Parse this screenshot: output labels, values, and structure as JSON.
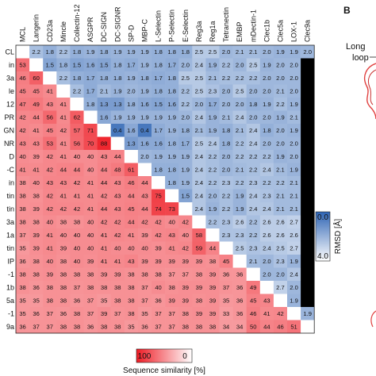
{
  "panel_label": "B",
  "panel_b_annotation": [
    "Long",
    "loop"
  ],
  "chart_data": {
    "type": "heatmap",
    "labels": [
      "MCL",
      "Langerin",
      "CD23a",
      "Mincle",
      "Collectin-12",
      "ASGPR",
      "DC-SIGN",
      "DC-SIGNR",
      "SP-D",
      "MBP-C",
      "L-Selectin",
      "P-Selectin",
      "E-Selectin",
      "Reg3a",
      "Reg1a",
      "Tetranectin",
      "EMBP",
      "mDectin-1",
      "Clec1b",
      "Clec5a",
      "LOX-1",
      "Clec9a"
    ],
    "row_labels_visible": [
      "CL",
      "in",
      "3a",
      "le",
      "12",
      "PR",
      "GN",
      "NR",
      "D",
      "-C",
      "in",
      "tin",
      "tin",
      "3a",
      "1a",
      "tin",
      "IP",
      "-1",
      "1b",
      "5a",
      "-1",
      "9a"
    ],
    "upper_triangle_metric": "RMSD [Å]",
    "lower_triangle_metric": "Sequence similarity [%]",
    "rmsd_colorbar": {
      "label": "RMSD [Å]",
      "min_label": "0.0",
      "max_label": "4.0",
      "range": [
        0,
        4
      ],
      "colors": [
        "#2e64b4",
        "#ffffff"
      ]
    },
    "similarity_colorbar": {
      "label": "Sequence similarity [%]",
      "min_label": "0",
      "max_label": "100",
      "range": [
        0,
        100
      ],
      "colors": [
        "#ffffff",
        "#ee1b24"
      ]
    },
    "upper_values": [
      [
        2.2,
        1.8,
        2.2,
        1.8,
        1.9,
        1.8,
        1.9,
        1.9,
        1.9,
        1.8,
        1.8,
        1.8,
        2.5,
        2.5,
        2.0,
        2.1,
        2.1,
        2.0,
        1.9,
        1.9,
        2.0
      ],
      [
        1.5,
        1.8,
        1.5,
        1.6,
        1.5,
        1.8,
        1.7,
        1.9,
        1.8,
        1.7,
        2.0,
        2.4,
        1.9,
        2.2,
        2.0,
        2.5,
        1.9,
        2.0,
        2.0
      ],
      [
        2.2,
        1.8,
        1.7,
        1.8,
        1.8,
        1.9,
        1.8,
        1.7,
        1.8,
        2.5,
        2.5,
        2.1,
        2.2,
        2.2,
        2.2,
        2.0,
        2.0,
        2.0
      ],
      [
        2.2,
        1.7,
        2.1,
        1.9,
        2.0,
        1.9,
        1.8,
        1.8,
        2.2,
        2.5,
        2.3,
        2.0,
        2.5,
        2.0,
        2.0,
        2.1,
        2.0
      ],
      [
        1.8,
        1.3,
        1.3,
        1.8,
        1.6,
        1.5,
        1.6,
        2.2,
        2.0,
        1.7,
        2.0,
        2.0,
        1.8,
        1.9,
        2.2,
        1.9
      ],
      [
        1.6,
        1.9,
        1.9,
        1.9,
        1.9,
        1.9,
        2.0,
        2.4,
        1.9,
        2.1,
        2.4,
        2.0,
        2.0,
        1.9,
        2.1
      ],
      [
        0.4,
        1.6,
        0.4,
        1.7,
        1.9,
        1.8,
        2.1,
        1.9,
        1.8,
        2.1,
        2.4,
        1.8,
        2.0,
        1.9
      ],
      [
        1.3,
        1.6,
        1.6,
        1.8,
        1.7,
        2.5,
        2.4,
        1.8,
        2.2,
        2.4,
        2.0,
        2.0,
        2.0
      ],
      [
        2.0,
        1.9,
        1.9,
        1.9,
        2.4,
        2.2,
        2.0,
        2.2,
        2.2,
        2.2,
        1.9,
        2.0
      ],
      [
        1.8,
        1.8,
        1.9,
        2.4,
        2.2,
        2.0,
        2.1,
        2.2,
        2.4,
        2.1,
        1.9
      ],
      [
        1.8,
        1.9,
        2.4,
        2.2,
        2.3,
        2.2,
        2.3,
        2.2,
        2.2,
        2.1
      ],
      [
        1.5,
        2.4,
        2.0,
        2.2,
        1.9,
        2.4,
        2.3,
        2.1,
        2.1
      ],
      [
        2.4,
        1.9,
        2.2,
        1.9,
        2.4,
        2.4,
        2.1,
        2.1
      ],
      [
        2.2,
        2.3,
        2.6,
        2.2,
        2.6,
        2.6,
        2.7
      ],
      [
        2.3,
        2.3,
        2.2,
        2.6,
        2.6,
        2.6
      ],
      [
        2.5,
        2.3,
        2.4,
        2.5,
        2.7
      ],
      [
        2.1,
        2.0,
        2.3,
        1.9
      ],
      [
        2.0,
        2.0,
        2.4
      ],
      [
        2.7,
        2.0
      ],
      [
        1.9
      ],
      [
        1.9
      ],
      []
    ],
    "lower_values": [
      [],
      [
        53
      ],
      [
        46,
        60
      ],
      [
        45,
        45,
        41
      ],
      [
        47,
        49,
        43,
        41
      ],
      [
        42,
        44,
        56,
        41,
        62
      ],
      [
        42,
        41,
        45,
        42,
        57,
        71
      ],
      [
        43,
        43,
        53,
        41,
        56,
        70,
        88
      ],
      [
        40,
        39,
        42,
        41,
        40,
        40,
        43,
        44
      ],
      [
        41,
        41,
        42,
        44,
        44,
        40,
        44,
        48,
        61
      ],
      [
        38,
        40,
        43,
        43,
        42,
        41,
        44,
        43,
        46,
        44
      ],
      [
        38,
        38,
        42,
        41,
        41,
        41,
        42,
        43,
        44,
        43,
        75
      ],
      [
        38,
        39,
        42,
        42,
        42,
        41,
        44,
        43,
        45,
        44,
        74,
        73
      ],
      [
        38,
        38,
        40,
        38,
        38,
        40,
        42,
        42,
        44,
        42,
        42,
        40,
        42
      ],
      [
        37,
        39,
        41,
        40,
        40,
        40,
        41,
        42,
        41,
        39,
        42,
        43,
        40,
        58
      ],
      [
        35,
        39,
        41,
        39,
        40,
        40,
        41,
        40,
        40,
        40,
        39,
        41,
        42,
        59,
        44
      ],
      [
        36,
        38,
        40,
        38,
        40,
        39,
        41,
        41,
        43,
        39,
        39,
        39,
        39,
        39,
        38,
        45
      ],
      [
        38,
        38,
        39,
        38,
        38,
        38,
        39,
        39,
        38,
        38,
        38,
        37,
        37,
        38,
        39,
        36,
        36
      ],
      [
        38,
        36,
        38,
        38,
        37,
        38,
        38,
        38,
        38,
        37,
        40,
        38,
        39,
        39,
        39,
        37,
        36,
        49
      ],
      [
        35,
        35,
        38,
        38,
        36,
        37,
        35,
        38,
        38,
        37,
        36,
        39,
        39,
        38,
        39,
        35,
        36,
        45,
        43
      ],
      [
        35,
        36,
        37,
        36,
        38,
        37,
        39,
        37,
        38,
        35,
        37,
        37,
        38,
        39,
        39,
        33,
        36,
        46,
        41,
        42
      ],
      [
        36,
        37,
        37,
        38,
        38,
        36,
        38,
        38,
        35,
        36,
        37,
        37,
        38,
        38,
        38,
        34,
        34,
        50,
        44,
        46,
        51
      ]
    ]
  }
}
